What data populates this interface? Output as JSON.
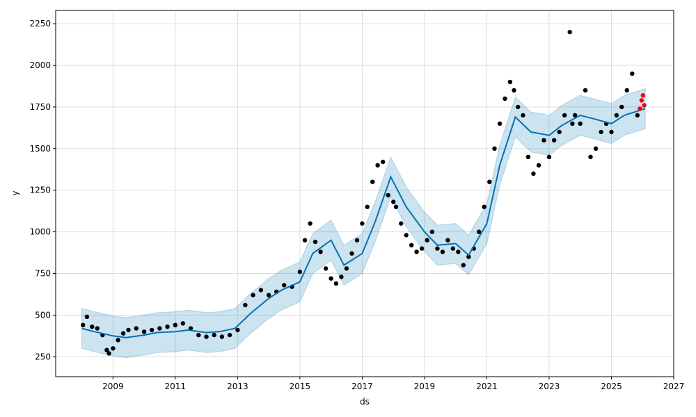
{
  "chart_data": {
    "type": "line",
    "title": "",
    "xlabel": "ds",
    "ylabel": "y",
    "xlim": [
      "2007-03-01",
      "2027-01-01"
    ],
    "ylim": [
      130,
      2330
    ],
    "grid": true,
    "legend": "none",
    "x_ticks": [
      "2009",
      "2011",
      "2013",
      "2015",
      "2017",
      "2019",
      "2021",
      "2023",
      "2025",
      "2027"
    ],
    "y_ticks": [
      250,
      500,
      750,
      1000,
      1250,
      1500,
      1750,
      2000,
      2250
    ],
    "colors": {
      "observed": "#000000",
      "forecast_line": "#0072B2",
      "uncertainty_band": "#0072B2",
      "recent_actuals": "#ff0000",
      "grid": "#dddddd"
    },
    "series": [
      {
        "type": "scatter",
        "x": [
          "2008-01-15",
          "2008-03-01",
          "2008-05-01",
          "2008-07-01",
          "2008-09-01",
          "2008-10-20",
          "2008-11-15",
          "2009-01-01",
          "2009-03-01",
          "2009-05-01",
          "2009-07-01",
          "2009-10-01",
          "2010-01-01",
          "2010-04-01",
          "2010-07-01",
          "2010-10-01",
          "2011-01-01",
          "2011-04-01",
          "2011-07-01",
          "2011-10-01",
          "2012-01-01",
          "2012-04-01",
          "2012-07-01",
          "2012-10-01",
          "2013-01-01",
          "2013-04-01",
          "2013-07-01",
          "2013-10-01",
          "2014-01-01",
          "2014-04-01",
          "2014-07-01",
          "2014-10-01",
          "2015-01-01",
          "2015-03-01",
          "2015-05-01",
          "2015-07-01",
          "2015-09-01",
          "2015-11-01",
          "2016-01-01",
          "2016-03-01",
          "2016-05-01",
          "2016-07-01",
          "2016-09-01",
          "2016-11-01",
          "2017-01-01",
          "2017-03-01",
          "2017-05-01",
          "2017-07-01",
          "2017-09-01",
          "2017-11-01",
          "2018-01-01",
          "2018-02-01",
          "2018-04-01",
          "2018-06-01",
          "2018-08-01",
          "2018-10-01",
          "2018-12-01",
          "2019-02-01",
          "2019-04-01",
          "2019-06-01",
          "2019-08-01",
          "2019-10-01",
          "2019-12-01",
          "2020-02-01",
          "2020-04-01",
          "2020-06-01",
          "2020-08-01",
          "2020-10-01",
          "2020-12-01",
          "2021-02-01",
          "2021-04-01",
          "2021-06-01",
          "2021-08-01",
          "2021-10-01",
          "2021-11-15",
          "2022-01-01",
          "2022-03-01",
          "2022-05-01",
          "2022-07-01",
          "2022-09-01",
          "2022-11-01",
          "2023-01-01",
          "2023-03-01",
          "2023-05-01",
          "2023-07-01",
          "2023-09-01",
          "2023-10-01",
          "2023-11-01",
          "2024-01-01",
          "2024-03-01",
          "2024-05-01",
          "2024-07-01",
          "2024-09-01",
          "2024-11-01",
          "2025-01-01",
          "2025-03-01",
          "2025-05-01",
          "2025-07-01",
          "2025-09-01",
          "2025-11-01"
        ],
        "values": [
          440,
          490,
          430,
          420,
          380,
          290,
          270,
          300,
          350,
          390,
          410,
          420,
          400,
          410,
          420,
          430,
          440,
          450,
          420,
          380,
          370,
          380,
          370,
          380,
          410,
          560,
          620,
          650,
          620,
          640,
          680,
          670,
          760,
          950,
          1050,
          940,
          880,
          780,
          720,
          690,
          730,
          780,
          870,
          950,
          1050,
          1150,
          1300,
          1400,
          1420,
          1220,
          1180,
          1150,
          1050,
          980,
          920,
          880,
          900,
          950,
          1000,
          900,
          880,
          950,
          900,
          880,
          800,
          850,
          900,
          1000,
          1150,
          1300,
          1500,
          1650,
          1800,
          1900,
          1850,
          1750,
          1700,
          1450,
          1350,
          1400,
          1550,
          1450,
          1550,
          1600,
          1700,
          2200,
          1650,
          1700,
          1650,
          1850,
          1450,
          1500,
          1600,
          1650,
          1600,
          1700,
          1750,
          1850,
          1950,
          1700
        ]
      },
      {
        "type": "line",
        "x": [
          "2008-01-01",
          "2008-06-01",
          "2009-01-01",
          "2009-06-01",
          "2010-01-01",
          "2010-06-01",
          "2011-01-01",
          "2011-06-01",
          "2012-01-01",
          "2012-06-01",
          "2012-12-01",
          "2013-06-01",
          "2014-01-01",
          "2014-06-01",
          "2015-01-01",
          "2015-06-01",
          "2016-01-01",
          "2016-06-01",
          "2017-01-01",
          "2017-06-01",
          "2017-12-01",
          "2018-06-01",
          "2019-01-01",
          "2019-06-01",
          "2020-01-01",
          "2020-06-01",
          "2021-01-01",
          "2021-06-01",
          "2021-12-01",
          "2022-06-01",
          "2023-01-01",
          "2023-06-01",
          "2024-01-01",
          "2024-06-01",
          "2025-01-01",
          "2025-06-01",
          "2026-02-01"
        ],
        "values": [
          420,
          400,
          375,
          365,
          380,
          395,
          400,
          410,
          395,
          400,
          420,
          510,
          600,
          650,
          700,
          870,
          950,
          800,
          870,
          1060,
          1330,
          1150,
          1000,
          920,
          930,
          860,
          1050,
          1400,
          1690,
          1600,
          1580,
          1640,
          1700,
          1680,
          1650,
          1700,
          1740
        ]
      },
      {
        "type": "scatter",
        "x": [
          "2025-12-01",
          "2025-12-20",
          "2026-01-05",
          "2026-01-20"
        ],
        "values": [
          1740,
          1790,
          1820,
          1760
        ]
      }
    ],
    "uncertainty_band": {
      "x": [
        "2008-01-01",
        "2008-06-01",
        "2009-01-01",
        "2009-06-01",
        "2010-01-01",
        "2010-06-01",
        "2011-01-01",
        "2011-06-01",
        "2012-01-01",
        "2012-06-01",
        "2012-12-01",
        "2013-06-01",
        "2014-01-01",
        "2014-06-01",
        "2015-01-01",
        "2015-06-01",
        "2016-01-01",
        "2016-06-01",
        "2017-01-01",
        "2017-06-01",
        "2017-12-01",
        "2018-06-01",
        "2019-01-01",
        "2019-06-01",
        "2020-01-01",
        "2020-06-01",
        "2021-01-01",
        "2021-06-01",
        "2021-12-01",
        "2022-06-01",
        "2023-01-01",
        "2023-06-01",
        "2024-01-01",
        "2024-06-01",
        "2025-01-01",
        "2025-06-01",
        "2026-02-01"
      ],
      "upper": [
        540,
        520,
        495,
        485,
        500,
        515,
        520,
        530,
        515,
        520,
        540,
        630,
        720,
        770,
        820,
        990,
        1070,
        920,
        990,
        1180,
        1450,
        1270,
        1120,
        1040,
        1050,
        980,
        1170,
        1520,
        1810,
        1720,
        1700,
        1760,
        1820,
        1800,
        1770,
        1820,
        1860
      ],
      "lower": [
        300,
        280,
        255,
        245,
        260,
        275,
        280,
        290,
        275,
        280,
        300,
        390,
        480,
        530,
        580,
        750,
        830,
        680,
        750,
        940,
        1210,
        1030,
        880,
        800,
        810,
        740,
        930,
        1280,
        1570,
        1480,
        1460,
        1520,
        1580,
        1560,
        1530,
        1580,
        1620
      ]
    }
  }
}
